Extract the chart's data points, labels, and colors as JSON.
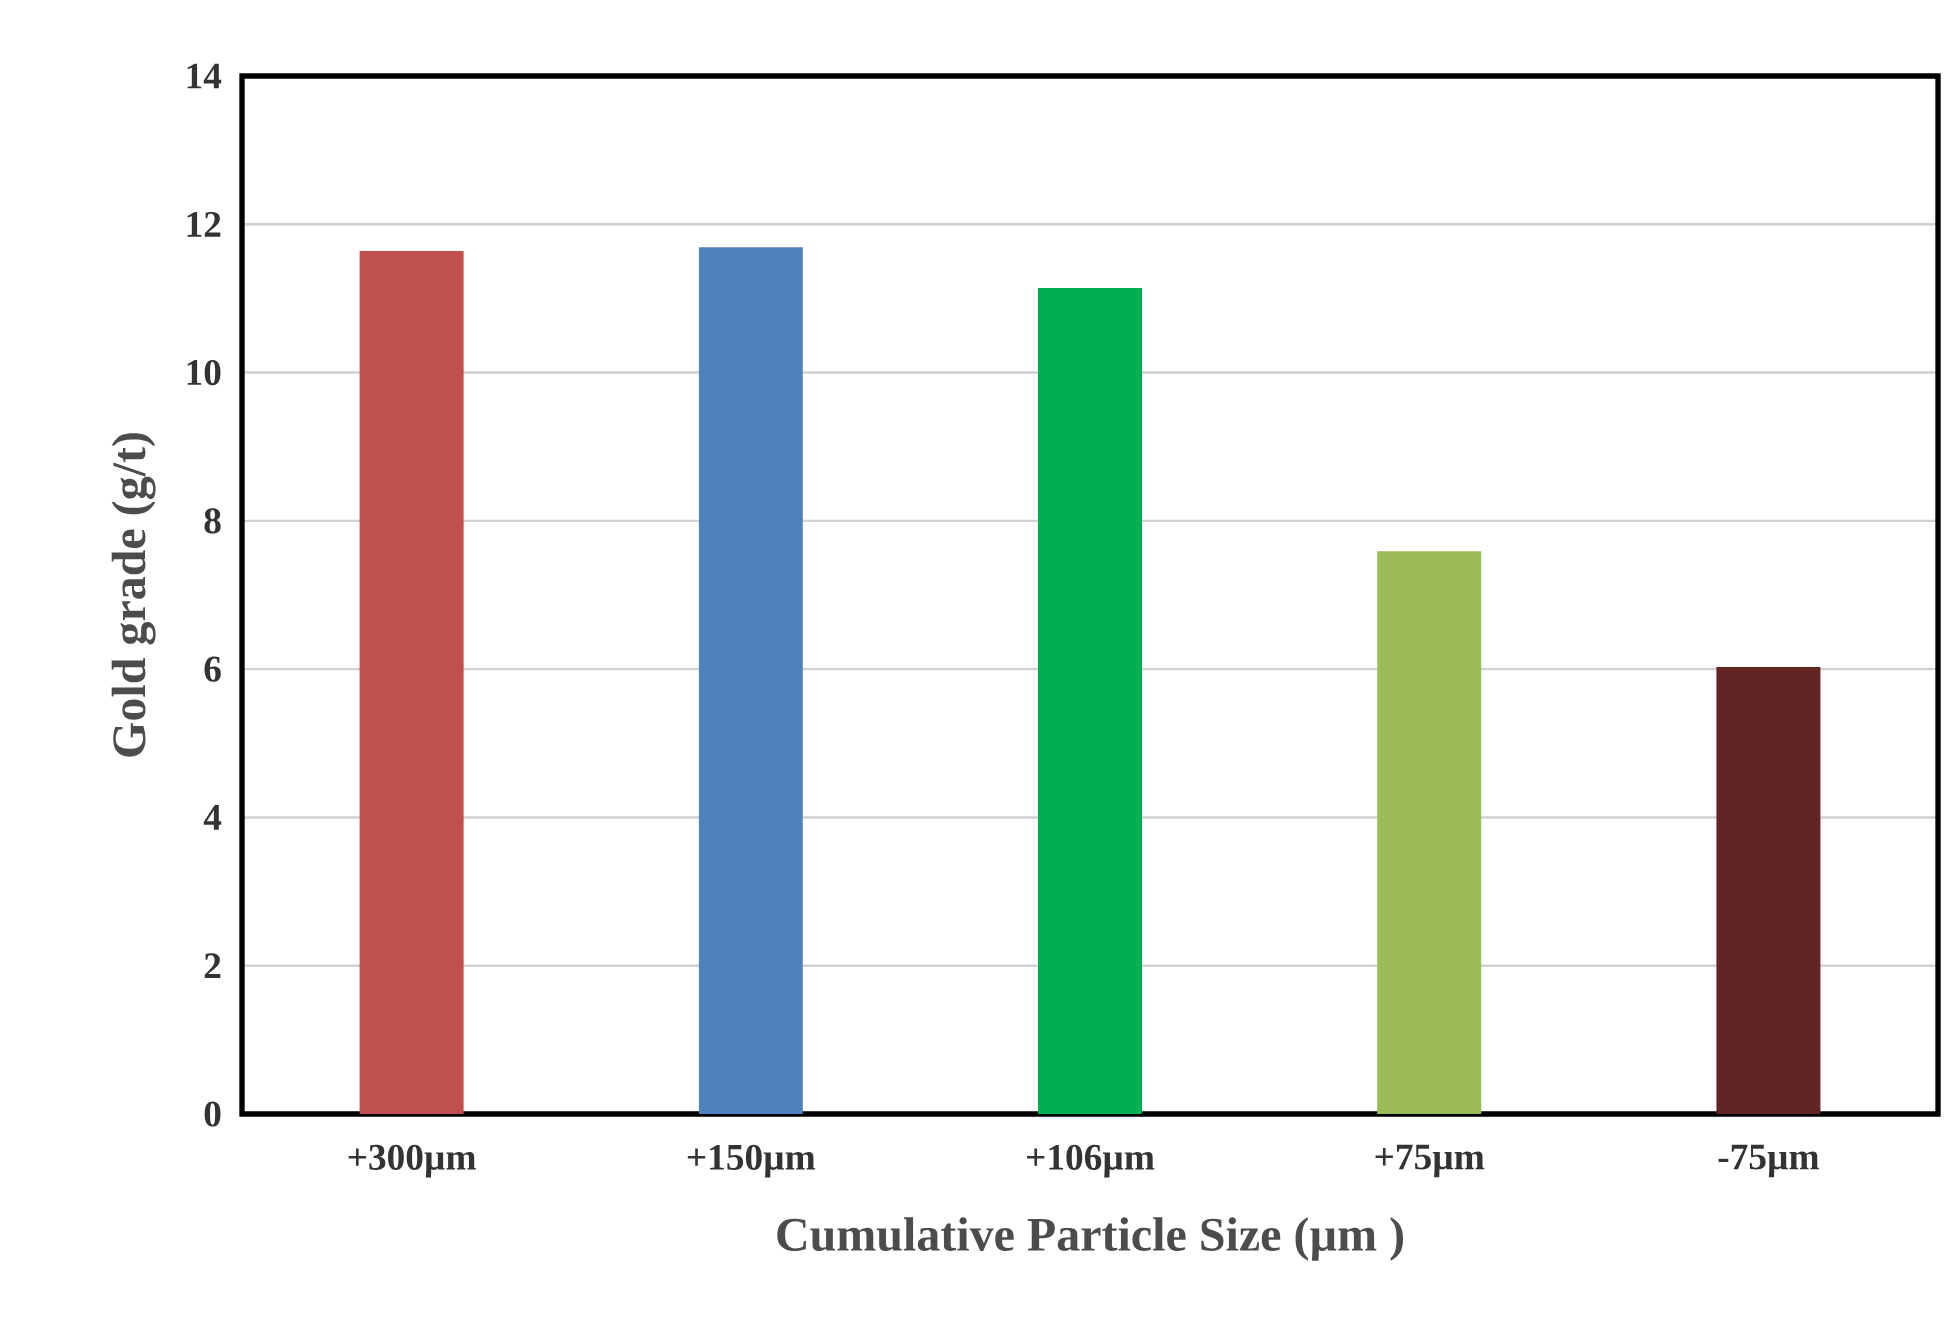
{
  "chart_data": {
    "type": "bar",
    "xlabel": "Cumulative Particle Size  (µm )",
    "ylabel": "Gold grade (g/t)",
    "categories": [
      "+300µm",
      "+150µm",
      "+106µm",
      "+75µm",
      "-75µm"
    ],
    "values": [
      11.64,
      11.69,
      11.14,
      7.59,
      6.03
    ],
    "colors": [
      "#c0504d",
      "#4f81bd",
      "#00b050",
      "#9bbb59",
      "#632523"
    ],
    "ylim": [
      0,
      14
    ],
    "yticks": [
      0,
      2,
      4,
      6,
      8,
      10,
      12,
      14
    ],
    "grid": "y"
  }
}
